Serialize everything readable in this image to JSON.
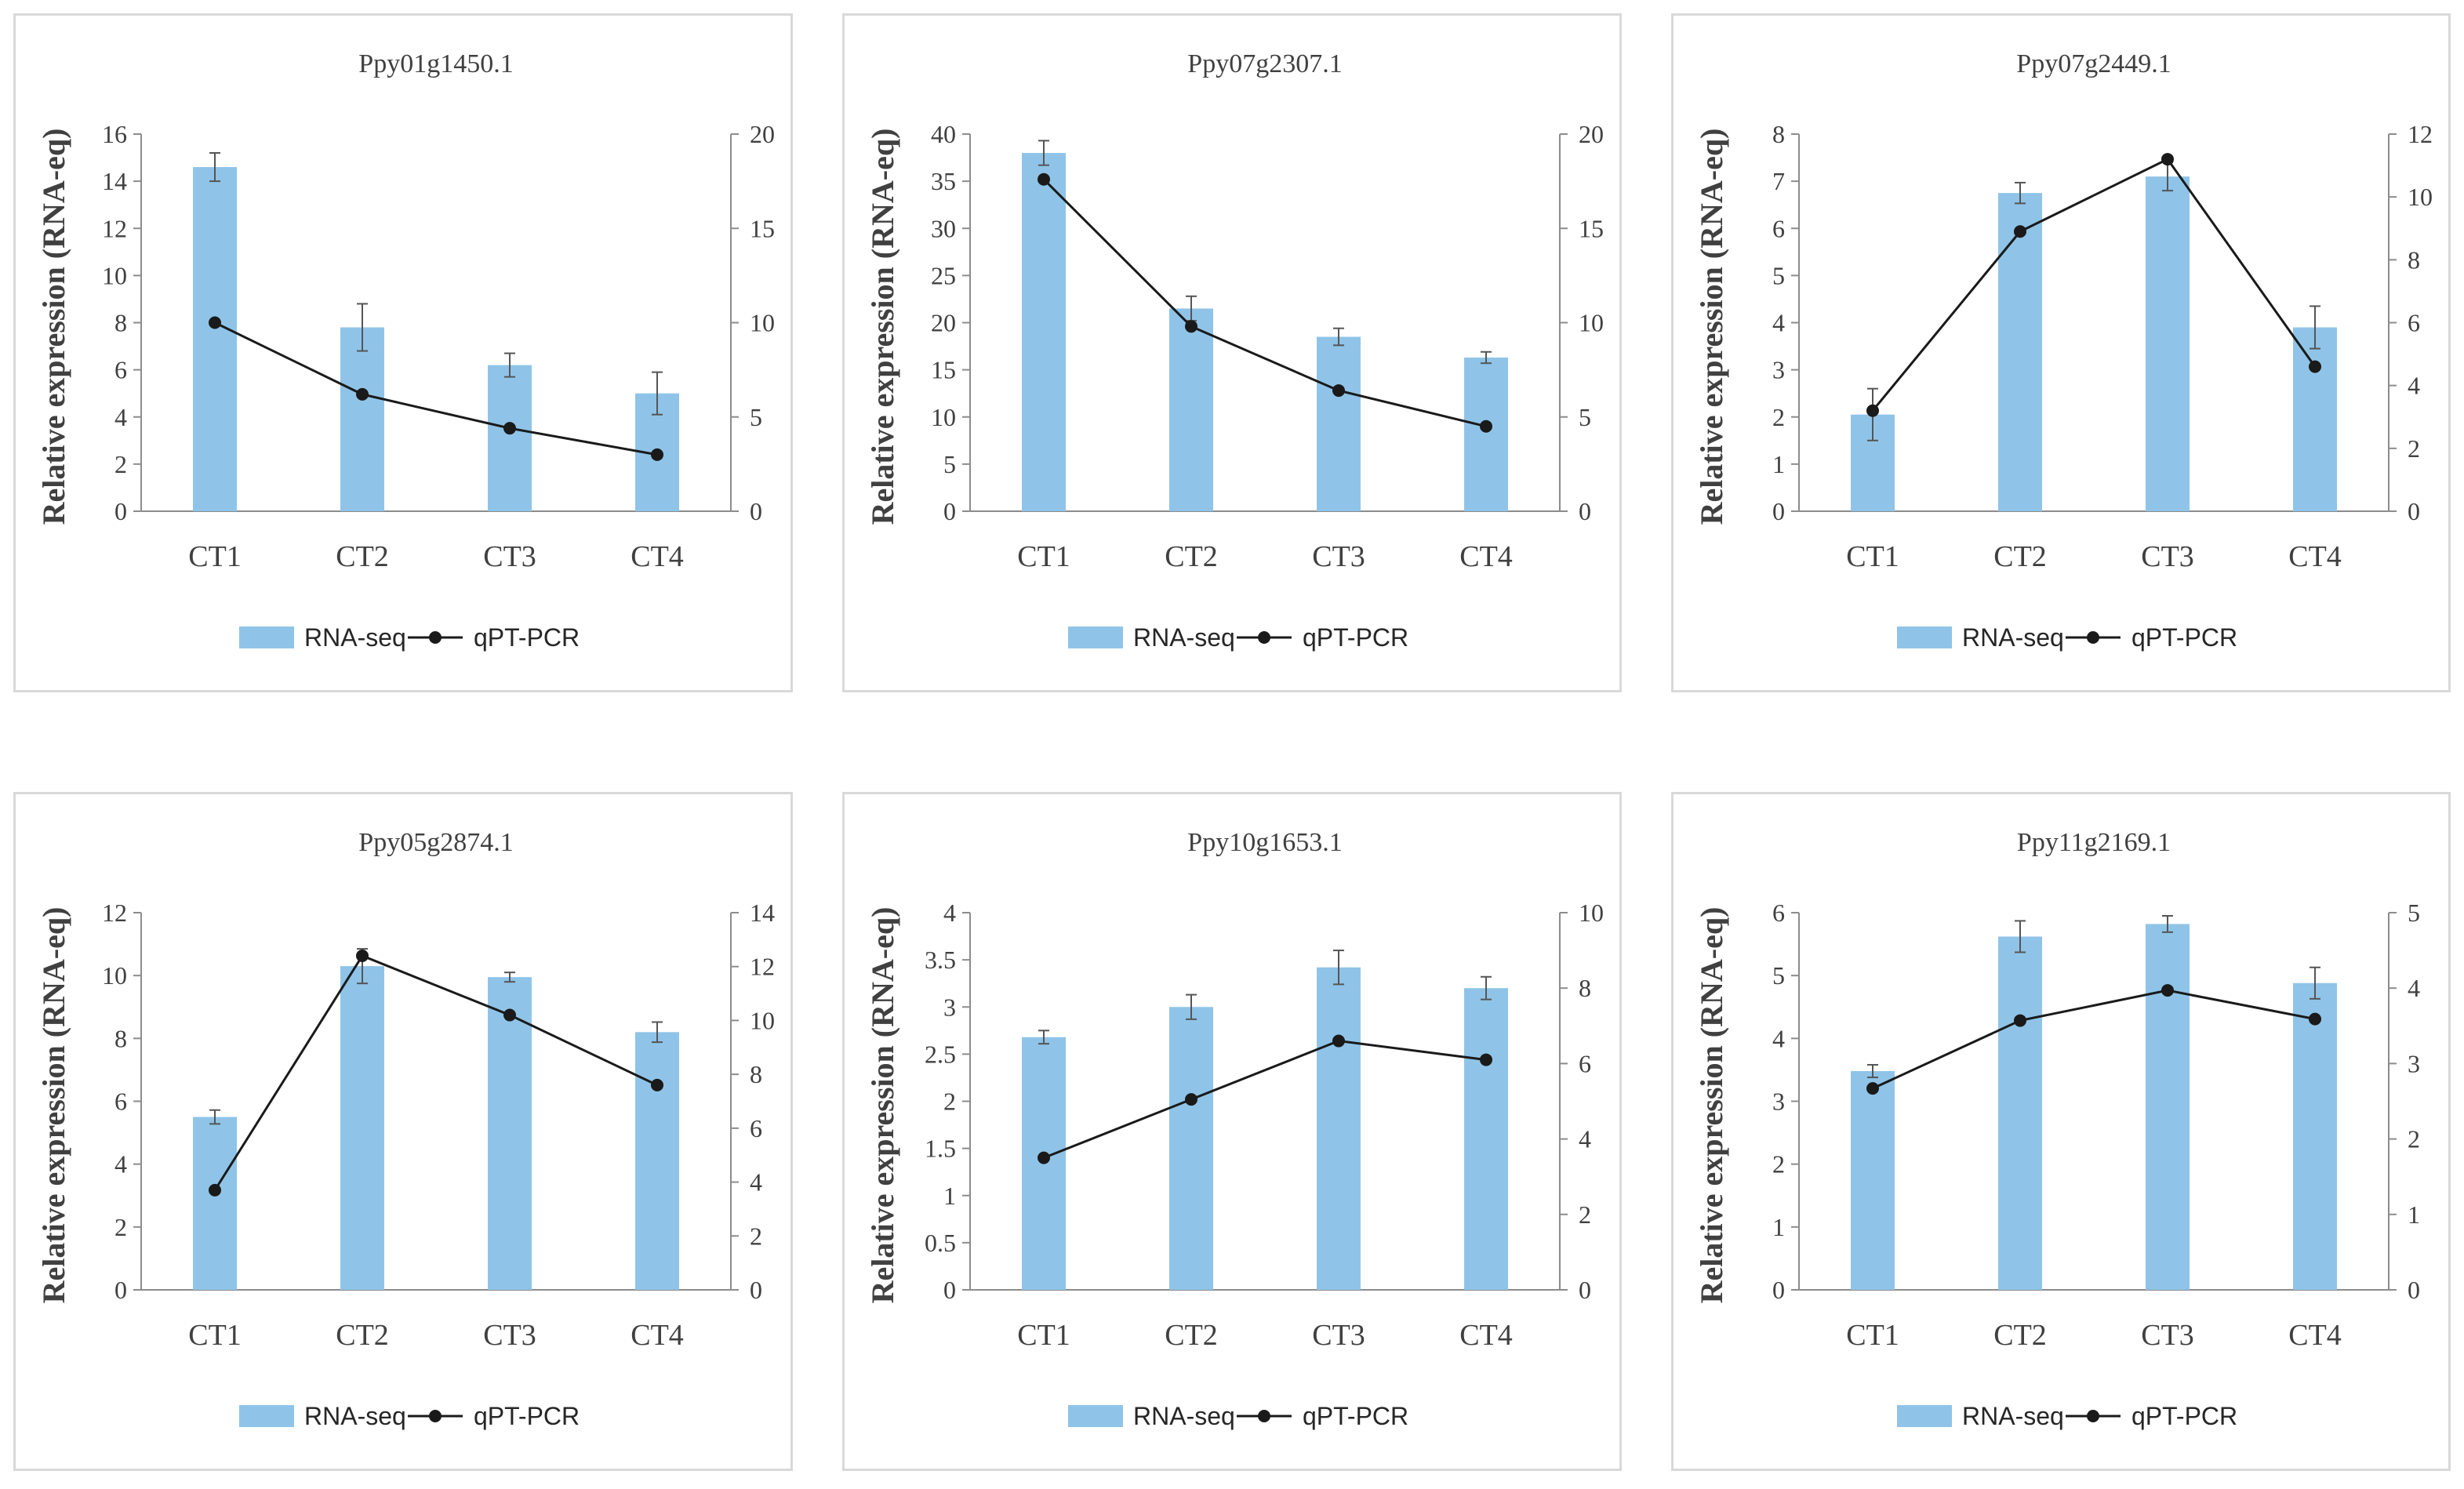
{
  "colors": {
    "bar": "#8fc4e8",
    "line": "#1a1a1a",
    "axis": "#8c8c8c",
    "text": "#404040"
  },
  "legend": {
    "bar_label": "RNA-seq",
    "line_label": "qPT-PCR"
  },
  "chart_data": [
    {
      "type": "bar",
      "title": "Ppy01g1450.1",
      "ylabel": "Relative expression (RNA-eq)",
      "categories": [
        "CT1",
        "CT2",
        "CT3",
        "CT4"
      ],
      "ylim": [
        0,
        16
      ],
      "yticks": [
        0,
        2,
        4,
        6,
        8,
        10,
        12,
        14,
        16
      ],
      "y2lim": [
        0,
        20
      ],
      "y2ticks": [
        0,
        5,
        10,
        15,
        20
      ],
      "series": [
        {
          "name": "RNA-seq",
          "kind": "bar",
          "axis": "left",
          "values": [
            14.6,
            7.8,
            6.2,
            5.0
          ],
          "errors": [
            0.6,
            1.0,
            0.5,
            0.9
          ]
        },
        {
          "name": "qPT-PCR",
          "kind": "line",
          "axis": "right",
          "values": [
            10.0,
            6.2,
            4.4,
            3.0
          ]
        }
      ]
    },
    {
      "type": "bar",
      "title": "Ppy07g2307.1",
      "ylabel": "Relative expression (RNA-eq)",
      "categories": [
        "CT1",
        "CT2",
        "CT3",
        "CT4"
      ],
      "ylim": [
        0,
        40
      ],
      "yticks": [
        0,
        5,
        10,
        15,
        20,
        25,
        30,
        35,
        40
      ],
      "y2lim": [
        0,
        20
      ],
      "y2ticks": [
        0,
        5,
        10,
        15,
        20
      ],
      "series": [
        {
          "name": "RNA-seq",
          "kind": "bar",
          "axis": "left",
          "values": [
            38.0,
            21.5,
            18.5,
            16.3
          ],
          "errors": [
            1.3,
            1.3,
            0.9,
            0.6
          ]
        },
        {
          "name": "qPT-PCR",
          "kind": "line",
          "axis": "right",
          "values": [
            17.6,
            9.8,
            6.4,
            4.5
          ]
        }
      ]
    },
    {
      "type": "bar",
      "title": "Ppy07g2449.1",
      "ylabel": "Relative expression (RNA-eq)",
      "categories": [
        "CT1",
        "CT2",
        "CT3",
        "CT4"
      ],
      "ylim": [
        0,
        8
      ],
      "yticks": [
        0,
        1,
        2,
        3,
        4,
        5,
        6,
        7,
        8
      ],
      "y2lim": [
        0,
        12
      ],
      "y2ticks": [
        0,
        2,
        4,
        6,
        8,
        10,
        12
      ],
      "series": [
        {
          "name": "RNA-seq",
          "kind": "bar",
          "axis": "left",
          "values": [
            2.05,
            6.75,
            7.1,
            3.9
          ],
          "errors": [
            0.55,
            0.22,
            0.3,
            0.45
          ]
        },
        {
          "name": "qPT-PCR",
          "kind": "line",
          "axis": "right",
          "values": [
            3.2,
            8.9,
            11.2,
            4.6
          ]
        }
      ]
    },
    {
      "type": "bar",
      "title": "Ppy05g2874.1",
      "ylabel": "Relative expression (RNA-eq)",
      "categories": [
        "CT1",
        "CT2",
        "CT3",
        "CT4"
      ],
      "ylim": [
        0,
        12
      ],
      "yticks": [
        0,
        2,
        4,
        6,
        8,
        10,
        12
      ],
      "y2lim": [
        0,
        14
      ],
      "y2ticks": [
        0,
        2,
        4,
        6,
        8,
        10,
        12,
        14
      ],
      "series": [
        {
          "name": "RNA-seq",
          "kind": "bar",
          "axis": "left",
          "values": [
            5.5,
            10.3,
            9.95,
            8.2
          ],
          "errors": [
            0.22,
            0.55,
            0.15,
            0.32
          ]
        },
        {
          "name": "qPT-PCR",
          "kind": "line",
          "axis": "right",
          "values": [
            3.7,
            12.4,
            10.2,
            7.6
          ]
        }
      ]
    },
    {
      "type": "bar",
      "title": "Ppy10g1653.1",
      "ylabel": "Relative expression (RNA-eq)",
      "categories": [
        "CT1",
        "CT2",
        "CT3",
        "CT4"
      ],
      "ylim": [
        0,
        4
      ],
      "yticks": [
        0,
        0.5,
        1,
        1.5,
        2,
        2.5,
        3,
        3.5,
        4
      ],
      "y2lim": [
        0,
        10
      ],
      "y2ticks": [
        0,
        2,
        4,
        6,
        8,
        10
      ],
      "series": [
        {
          "name": "RNA-seq",
          "kind": "bar",
          "axis": "left",
          "values": [
            2.68,
            3.0,
            3.42,
            3.2
          ],
          "errors": [
            0.07,
            0.13,
            0.18,
            0.12
          ]
        },
        {
          "name": "qPT-PCR",
          "kind": "line",
          "axis": "right",
          "values": [
            3.5,
            5.05,
            6.6,
            6.1
          ]
        }
      ]
    },
    {
      "type": "bar",
      "title": "Ppy11g2169.1",
      "ylabel": "Relative expression (RNA-eq)",
      "categories": [
        "CT1",
        "CT2",
        "CT3",
        "CT4"
      ],
      "ylim": [
        0,
        6
      ],
      "yticks": [
        0,
        1,
        2,
        3,
        4,
        5,
        6
      ],
      "y2lim": [
        0,
        5
      ],
      "y2ticks": [
        0,
        1,
        2,
        3,
        4,
        5
      ],
      "series": [
        {
          "name": "RNA-seq",
          "kind": "bar",
          "axis": "left",
          "values": [
            3.48,
            5.62,
            5.82,
            4.88
          ],
          "errors": [
            0.1,
            0.25,
            0.13,
            0.25
          ]
        },
        {
          "name": "qPT-PCR",
          "kind": "line",
          "axis": "right",
          "values": [
            2.67,
            3.57,
            3.97,
            3.59
          ]
        }
      ]
    }
  ]
}
